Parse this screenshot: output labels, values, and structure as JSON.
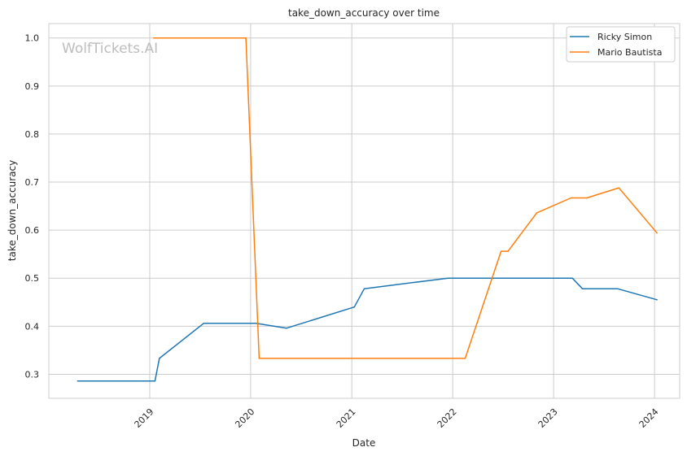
{
  "chart_data": {
    "type": "line",
    "title": "take_down_accuracy over time",
    "xlabel": "Date",
    "ylabel": "take_down_accuracy",
    "xlim": [
      "2018-01-01",
      "2024-04-01"
    ],
    "ylim": [
      0.25,
      1.03
    ],
    "x_ticks": [
      "2019",
      "2020",
      "2021",
      "2022",
      "2023",
      "2024"
    ],
    "y_ticks": [
      "0.3",
      "0.4",
      "0.5",
      "0.6",
      "0.7",
      "0.8",
      "0.9",
      "1.0"
    ],
    "grid": true,
    "legend_position": "top-right",
    "watermark": "WolfTickets.AI",
    "series": [
      {
        "name": "Ricky Simon",
        "color": "#1f77b4",
        "points": [
          [
            "2018-04-15",
            0.286
          ],
          [
            "2019-01-20",
            0.286
          ],
          [
            "2019-02-05",
            0.333
          ],
          [
            "2019-07-15",
            0.406
          ],
          [
            "2020-01-20",
            0.406
          ],
          [
            "2020-05-10",
            0.396
          ],
          [
            "2021-01-10",
            0.44
          ],
          [
            "2021-02-15",
            0.478
          ],
          [
            "2021-12-15",
            0.5
          ],
          [
            "2023-03-10",
            0.5
          ],
          [
            "2023-04-15",
            0.478
          ],
          [
            "2023-08-20",
            0.478
          ],
          [
            "2024-01-10",
            0.455
          ]
        ]
      },
      {
        "name": "Mario Bautista",
        "color": "#ff7f0e",
        "points": [
          [
            "2019-01-15",
            1.0
          ],
          [
            "2019-12-15",
            1.0
          ],
          [
            "2020-02-01",
            0.333
          ],
          [
            "2022-02-15",
            0.333
          ],
          [
            "2022-06-25",
            0.556
          ],
          [
            "2022-07-20",
            0.556
          ],
          [
            "2022-11-01",
            0.636
          ],
          [
            "2023-03-05",
            0.667
          ],
          [
            "2023-05-01",
            0.667
          ],
          [
            "2023-08-25",
            0.688
          ],
          [
            "2024-01-10",
            0.594
          ]
        ]
      }
    ]
  }
}
